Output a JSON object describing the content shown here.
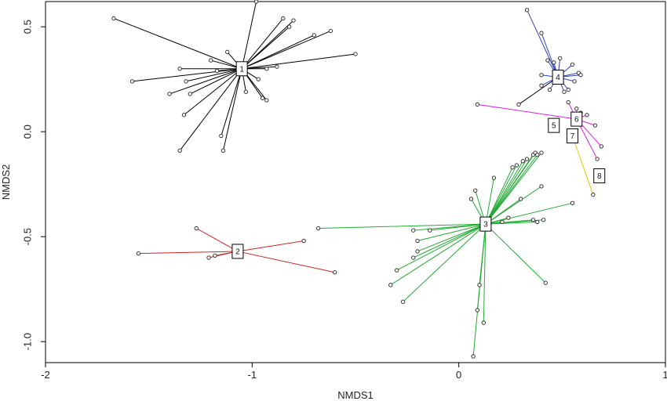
{
  "chart_data": {
    "type": "scatter",
    "xlabel": "NMDS1",
    "ylabel": "NMDS2",
    "xlim": [
      -2,
      1
    ],
    "ylim": [
      -1.1,
      0.62
    ],
    "x_ticks": [
      -2,
      -1,
      0,
      1
    ],
    "y_ticks": [
      0.5,
      0.0,
      -0.5,
      -1.0
    ],
    "x_tick_labels": [
      "-2",
      "-1",
      "0",
      "1"
    ],
    "y_tick_labels": [
      "0.5",
      "0.0",
      "-0.5",
      "-1.0"
    ],
    "grid": false,
    "legend": "none",
    "groups": [
      {
        "label": "1",
        "color": "#000000",
        "centroid": [
          -1.05,
          0.3
        ],
        "points": [
          [
            -1.67,
            0.54
          ],
          [
            -0.98,
            0.62
          ],
          [
            -0.85,
            0.54
          ],
          [
            -0.8,
            0.53
          ],
          [
            -0.82,
            0.5
          ],
          [
            -0.62,
            0.48
          ],
          [
            -0.7,
            0.46
          ],
          [
            -0.5,
            0.37
          ],
          [
            -1.58,
            0.24
          ],
          [
            -1.35,
            0.3
          ],
          [
            -1.32,
            0.24
          ],
          [
            -1.17,
            0.29
          ],
          [
            -1.2,
            0.34
          ],
          [
            -1.12,
            0.38
          ],
          [
            -1.4,
            0.18
          ],
          [
            -1.3,
            0.18
          ],
          [
            -1.33,
            0.08
          ],
          [
            -0.88,
            0.31
          ],
          [
            -0.93,
            0.3
          ],
          [
            -0.97,
            0.25
          ],
          [
            -1.03,
            0.19
          ],
          [
            -0.95,
            0.16
          ],
          [
            -0.93,
            0.15
          ],
          [
            -1.15,
            -0.02
          ],
          [
            -1.14,
            -0.09
          ],
          [
            -1.35,
            -0.09
          ]
        ]
      },
      {
        "label": "2",
        "color": "#cc2222",
        "centroid": [
          -1.07,
          -0.57
        ],
        "points": [
          [
            -1.55,
            -0.58
          ],
          [
            -1.27,
            -0.46
          ],
          [
            -1.21,
            -0.6
          ],
          [
            -1.18,
            -0.59
          ],
          [
            -0.75,
            -0.52
          ],
          [
            -0.6,
            -0.67
          ]
        ]
      },
      {
        "label": "3",
        "color": "#22aa33",
        "centroid": [
          0.13,
          -0.44
        ],
        "points": [
          [
            -0.68,
            -0.46
          ],
          [
            -0.22,
            -0.47
          ],
          [
            -0.14,
            -0.47
          ],
          [
            -0.2,
            -0.52
          ],
          [
            -0.2,
            -0.57
          ],
          [
            -0.22,
            -0.6
          ],
          [
            -0.3,
            -0.66
          ],
          [
            -0.33,
            -0.73
          ],
          [
            -0.27,
            -0.81
          ],
          [
            0.08,
            -0.28
          ],
          [
            0.06,
            -0.32
          ],
          [
            0.17,
            -0.22
          ],
          [
            0.26,
            -0.17
          ],
          [
            0.28,
            -0.16
          ],
          [
            0.31,
            -0.14
          ],
          [
            0.33,
            -0.13
          ],
          [
            0.36,
            -0.11
          ],
          [
            0.37,
            -0.1
          ],
          [
            0.38,
            -0.11
          ],
          [
            0.4,
            -0.1
          ],
          [
            0.4,
            -0.26
          ],
          [
            0.3,
            -0.32
          ],
          [
            0.36,
            -0.42
          ],
          [
            0.38,
            -0.43
          ],
          [
            0.41,
            -0.42
          ],
          [
            0.55,
            -0.34
          ],
          [
            0.24,
            -0.41
          ],
          [
            0.21,
            -0.43
          ],
          [
            0.42,
            -0.72
          ],
          [
            0.1,
            -0.73
          ],
          [
            0.09,
            -0.85
          ],
          [
            0.12,
            -0.91
          ],
          [
            0.07,
            -1.07
          ]
        ]
      },
      {
        "label": "4",
        "color": "#3344bb",
        "centroid": [
          0.48,
          0.26
        ],
        "points": [
          [
            0.33,
            0.58
          ],
          [
            0.4,
            0.47
          ],
          [
            0.43,
            0.34
          ],
          [
            0.46,
            0.33
          ],
          [
            0.49,
            0.35
          ],
          [
            0.55,
            0.32
          ],
          [
            0.58,
            0.28
          ],
          [
            0.59,
            0.27
          ],
          [
            0.56,
            0.24
          ],
          [
            0.53,
            0.2
          ],
          [
            0.51,
            0.19
          ],
          [
            0.44,
            0.2
          ],
          [
            0.4,
            0.22
          ],
          [
            0.4,
            0.27
          ]
        ]
      },
      {
        "label": "5",
        "color": "#dd22dd",
        "centroid": [
          0.46,
          0.03
        ],
        "points": []
      },
      {
        "label": "6",
        "color": "#dd22dd",
        "centroid": [
          0.57,
          0.06
        ],
        "points": [
          [
            0.09,
            0.13
          ],
          [
            0.53,
            0.14
          ],
          [
            0.57,
            0.11
          ],
          [
            0.59,
            0.09
          ],
          [
            0.62,
            0.08
          ],
          [
            0.66,
            0.03
          ],
          [
            0.69,
            -0.07
          ],
          [
            0.67,
            -0.13
          ]
        ]
      },
      {
        "label": "7",
        "color": "#ddcc00",
        "centroid": [
          0.55,
          -0.02
        ],
        "points": [
          [
            0.65,
            -0.3
          ]
        ]
      },
      {
        "label": "8",
        "color": "#000000",
        "centroid": [
          0.68,
          -0.21
        ],
        "points": []
      }
    ],
    "extra_links": [
      {
        "from": [
          0.48,
          0.26
        ],
        "to": [
          0.29,
          0.13
        ],
        "color": "#000000"
      }
    ]
  }
}
